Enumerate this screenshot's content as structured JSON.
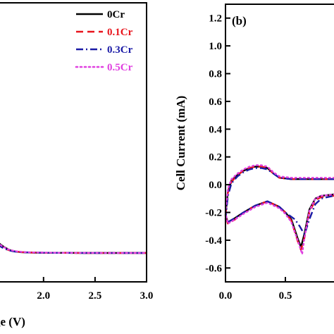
{
  "chart_data": [
    {
      "type": "line",
      "panel": "left",
      "xlabel": "ge (V)",
      "ylabel": "",
      "xlim": [
        1.55,
        3.0
      ],
      "ylim": [
        -0.15,
        1.3
      ],
      "xticks": [
        2.0,
        2.5,
        3.0
      ],
      "xtick_labels": [
        "2.0",
        "2.5",
        "3.0"
      ],
      "legend_position": "top-right",
      "series": [
        {
          "name": "0Cr",
          "color": "#000000",
          "dash": "solid",
          "x": [
            1.55,
            1.58,
            1.62,
            1.66,
            1.7,
            1.78,
            1.9,
            2.05,
            2.2,
            2.4,
            2.6,
            2.8,
            3.0
          ],
          "y": [
            0.06,
            0.045,
            0.03,
            0.018,
            0.01,
            0.004,
            0.002,
            0.001,
            0.001,
            0.0,
            0.0,
            0.0,
            0.0
          ]
        },
        {
          "name": "0.1Cr",
          "color": "#e8141c",
          "dash": "dash",
          "x": [
            1.55,
            1.6,
            1.66,
            1.72,
            1.8,
            1.9,
            2.05,
            2.2,
            2.4,
            2.6,
            2.8,
            3.0
          ],
          "y": [
            0.05,
            0.03,
            0.015,
            0.008,
            0.004,
            0.002,
            0.001,
            0.001,
            0.0,
            0.0,
            0.0,
            0.0
          ]
        },
        {
          "name": "0.3Cr",
          "color": "#1a1aa6",
          "dash": "dashdot",
          "x": [
            1.55,
            1.6,
            1.66,
            1.72,
            1.8,
            1.9,
            2.05,
            2.2,
            2.4,
            2.6,
            2.8,
            3.0
          ],
          "y": [
            0.045,
            0.028,
            0.014,
            0.007,
            0.004,
            0.002,
            0.001,
            0.001,
            0.0,
            0.0,
            0.0,
            0.0
          ]
        },
        {
          "name": "0.5Cr",
          "color": "#e040e0",
          "dash": "dot",
          "x": [
            1.55,
            1.6,
            1.66,
            1.72,
            1.8,
            1.9,
            2.05,
            2.2,
            2.4,
            2.6,
            2.8,
            3.0
          ],
          "y": [
            0.055,
            0.035,
            0.018,
            0.01,
            0.005,
            0.003,
            0.002,
            0.001,
            0.001,
            0.0,
            0.0,
            0.0
          ]
        }
      ]
    },
    {
      "type": "line",
      "panel": "right",
      "label": "(b)",
      "xlabel": "",
      "ylabel": "Cell Current (mA)",
      "xlim": [
        0.0,
        1.0
      ],
      "ylim": [
        -0.7,
        1.3
      ],
      "xticks": [
        0.0,
        0.5
      ],
      "xtick_labels": [
        "0.0",
        "0.5"
      ],
      "yticks": [
        -0.6,
        -0.4,
        -0.2,
        0.0,
        0.2,
        0.4,
        0.6,
        0.8,
        1.0,
        1.2
      ],
      "ytick_labels": [
        "-0.6",
        "-0.4",
        "-0.2",
        "0.0",
        "0.2",
        "0.4",
        "0.6",
        "0.8",
        "1.0",
        "1.2"
      ],
      "series": [
        {
          "name": "0Cr",
          "color": "#000000",
          "dash": "solid",
          "x": [
            0.0,
            0.02,
            0.05,
            0.1,
            0.15,
            0.2,
            0.25,
            0.3,
            0.35,
            0.4,
            0.45,
            0.55,
            0.65,
            0.75,
            0.85,
            0.95,
            1.0,
            0.95,
            0.9,
            0.8,
            0.75,
            0.7,
            0.66,
            0.63,
            0.6,
            0.55,
            0.5,
            0.45,
            0.35,
            0.25,
            0.15,
            0.08,
            0.04,
            0.02,
            0.0
          ],
          "y": [
            -0.22,
            -0.05,
            0.03,
            0.07,
            0.1,
            0.12,
            0.13,
            0.13,
            0.12,
            0.08,
            0.05,
            0.04,
            0.04,
            0.04,
            0.04,
            0.04,
            0.04,
            -0.07,
            -0.07,
            -0.08,
            -0.1,
            -0.18,
            -0.35,
            -0.45,
            -0.38,
            -0.25,
            -0.2,
            -0.16,
            -0.12,
            -0.15,
            -0.2,
            -0.24,
            -0.26,
            -0.27,
            -0.22
          ]
        },
        {
          "name": "0.1Cr",
          "color": "#e8141c",
          "dash": "dash",
          "x": [
            0.0,
            0.02,
            0.05,
            0.1,
            0.15,
            0.2,
            0.25,
            0.3,
            0.35,
            0.4,
            0.45,
            0.55,
            0.65,
            0.75,
            0.85,
            0.95,
            1.0,
            0.95,
            0.9,
            0.8,
            0.75,
            0.7,
            0.66,
            0.63,
            0.6,
            0.55,
            0.5,
            0.45,
            0.35,
            0.25,
            0.15,
            0.08,
            0.04,
            0.02,
            0.0
          ],
          "y": [
            -0.23,
            -0.06,
            0.02,
            0.07,
            0.1,
            0.12,
            0.13,
            0.13,
            0.12,
            0.08,
            0.05,
            0.04,
            0.04,
            0.04,
            0.04,
            0.04,
            0.04,
            -0.08,
            -0.08,
            -0.09,
            -0.11,
            -0.2,
            -0.38,
            -0.47,
            -0.4,
            -0.26,
            -0.2,
            -0.16,
            -0.12,
            -0.15,
            -0.2,
            -0.25,
            -0.27,
            -0.28,
            -0.23
          ]
        },
        {
          "name": "0.3Cr",
          "color": "#1a1aa6",
          "dash": "dashdot",
          "x": [
            0.0,
            0.02,
            0.05,
            0.1,
            0.15,
            0.2,
            0.25,
            0.3,
            0.35,
            0.4,
            0.45,
            0.55,
            0.65,
            0.75,
            0.85,
            0.95,
            1.0,
            0.95,
            0.9,
            0.8,
            0.75,
            0.7,
            0.66,
            0.62,
            0.58,
            0.5,
            0.45,
            0.35,
            0.25,
            0.15,
            0.08,
            0.04,
            0.02,
            0.0
          ],
          "y": [
            -0.25,
            -0.08,
            0.01,
            0.06,
            0.09,
            0.11,
            0.12,
            0.12,
            0.11,
            0.08,
            0.05,
            0.04,
            0.04,
            0.04,
            0.04,
            0.04,
            0.04,
            -0.08,
            -0.08,
            -0.1,
            -0.14,
            -0.25,
            -0.36,
            -0.3,
            -0.25,
            -0.2,
            -0.16,
            -0.12,
            -0.15,
            -0.2,
            -0.24,
            -0.26,
            -0.27,
            -0.25
          ]
        },
        {
          "name": "0.5Cr",
          "color": "#e040e0",
          "dash": "dot",
          "x": [
            0.0,
            0.02,
            0.05,
            0.1,
            0.15,
            0.2,
            0.25,
            0.3,
            0.35,
            0.4,
            0.45,
            0.55,
            0.65,
            0.75,
            0.85,
            0.95,
            1.0,
            0.95,
            0.9,
            0.8,
            0.75,
            0.7,
            0.66,
            0.64,
            0.61,
            0.55,
            0.5,
            0.45,
            0.35,
            0.25,
            0.15,
            0.08,
            0.04,
            0.02,
            0.0
          ],
          "y": [
            -0.2,
            -0.03,
            0.04,
            0.08,
            0.11,
            0.13,
            0.14,
            0.14,
            0.13,
            0.09,
            0.06,
            0.05,
            0.05,
            0.05,
            0.05,
            0.05,
            0.05,
            -0.07,
            -0.07,
            -0.08,
            -0.1,
            -0.19,
            -0.38,
            -0.5,
            -0.42,
            -0.27,
            -0.21,
            -0.17,
            -0.13,
            -0.16,
            -0.21,
            -0.25,
            -0.27,
            -0.28,
            -0.2
          ]
        }
      ]
    }
  ]
}
